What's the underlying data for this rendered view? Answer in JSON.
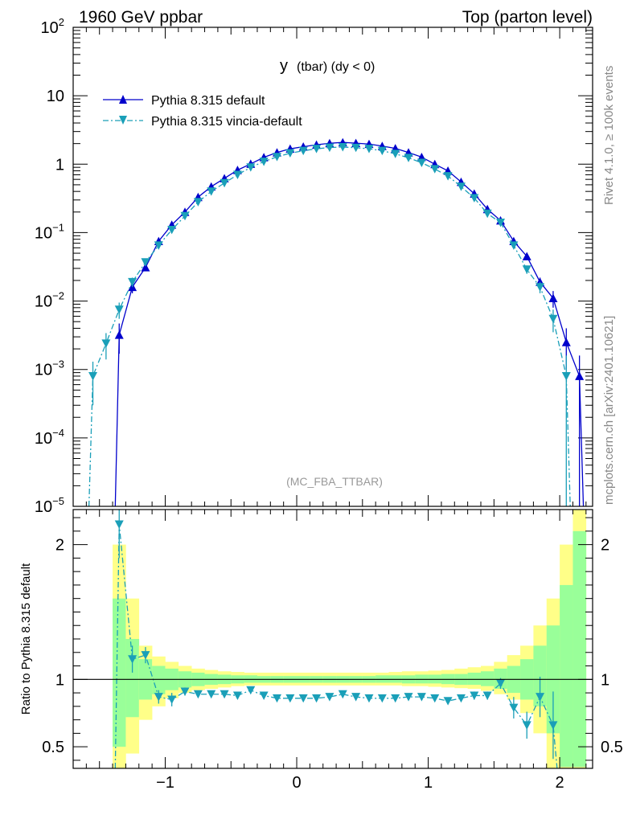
{
  "header": {
    "left": "1960 GeV ppbar",
    "right": "Top (parton level)"
  },
  "side_labels": {
    "rivet": "Rivet 4.1.0, ≥ 100k events",
    "mcplots": "mcplots.cern.ch [arXiv:2401.10621]"
  },
  "chart_data": {
    "type": "line",
    "title_main": "y",
    "title_sub": "(tbar) (dy < 0)",
    "analysis_label": "(MC_FBA_TTBAR)",
    "colors": {
      "default": "#0000cc",
      "vincia": "#1a9fb8",
      "band_green": "#99ff99",
      "band_yellow": "#ffff88"
    },
    "main": {
      "yscale": "log",
      "ylim": [
        1e-05,
        100
      ],
      "xlim": [
        -1.7,
        2.25
      ],
      "y_tick_labels": [
        "10^2",
        "10",
        "1",
        "10^-1",
        "10^-2",
        "10^-3",
        "10^-4",
        "10^-5"
      ],
      "series": [
        {
          "name": "Pythia 8.315 default",
          "marker": "triangle-up",
          "x": [
            -1.35,
            -1.25,
            -1.15,
            -1.05,
            -0.95,
            -0.85,
            -0.75,
            -0.65,
            -0.55,
            -0.45,
            -0.35,
            -0.25,
            -0.15,
            -0.05,
            0.05,
            0.15,
            0.25,
            0.35,
            0.45,
            0.55,
            0.65,
            0.75,
            0.85,
            0.95,
            1.05,
            1.15,
            1.25,
            1.35,
            1.45,
            1.55,
            1.65,
            1.75,
            1.85,
            1.95,
            2.05,
            2.15
          ],
          "y": [
            0.0032,
            0.016,
            0.031,
            0.075,
            0.13,
            0.2,
            0.33,
            0.47,
            0.62,
            0.82,
            1.01,
            1.26,
            1.48,
            1.68,
            1.8,
            1.92,
            2.02,
            2.08,
            2.03,
            1.97,
            1.84,
            1.7,
            1.48,
            1.27,
            1.0,
            0.8,
            0.55,
            0.37,
            0.22,
            0.15,
            0.075,
            0.045,
            0.019,
            0.011,
            0.0025,
            0.0008
          ],
          "yerr_low": [
            0.0015,
            0.003,
            0.003,
            0.005,
            0.006,
            0.008,
            0.01,
            0.01,
            0.01,
            0.01,
            0.01,
            0.01,
            0.01,
            0.01,
            0.01,
            0.01,
            0.01,
            0.01,
            0.01,
            0.01,
            0.01,
            0.01,
            0.01,
            0.01,
            0.01,
            0.01,
            0.01,
            0.01,
            0.01,
            0.008,
            0.006,
            0.004,
            0.003,
            0.003,
            0.0015,
            0.0008
          ],
          "yerr_high": [
            0.0015,
            0.003,
            0.003,
            0.005,
            0.006,
            0.008,
            0.01,
            0.01,
            0.01,
            0.01,
            0.01,
            0.01,
            0.01,
            0.01,
            0.01,
            0.01,
            0.01,
            0.01,
            0.01,
            0.01,
            0.01,
            0.01,
            0.01,
            0.01,
            0.01,
            0.01,
            0.01,
            0.01,
            0.01,
            0.008,
            0.006,
            0.004,
            0.003,
            0.003,
            0.0015,
            0.0008
          ]
        },
        {
          "name": "Pythia 8.315 vincia-default",
          "marker": "triangle-down",
          "x": [
            -1.55,
            -1.45,
            -1.35,
            -1.25,
            -1.15,
            -1.05,
            -0.95,
            -0.85,
            -0.75,
            -0.65,
            -0.55,
            -0.45,
            -0.35,
            -0.25,
            -0.15,
            -0.05,
            0.05,
            0.15,
            0.25,
            0.35,
            0.45,
            0.55,
            0.65,
            0.75,
            0.85,
            0.95,
            1.05,
            1.15,
            1.25,
            1.35,
            1.45,
            1.55,
            1.65,
            1.75,
            1.85,
            1.95,
            2.05
          ],
          "y": [
            0.0008,
            0.0024,
            0.0075,
            0.019,
            0.037,
            0.065,
            0.11,
            0.175,
            0.28,
            0.4,
            0.53,
            0.7,
            0.9,
            1.09,
            1.28,
            1.45,
            1.57,
            1.68,
            1.75,
            1.78,
            1.74,
            1.68,
            1.57,
            1.42,
            1.24,
            1.05,
            0.85,
            0.67,
            0.47,
            0.32,
            0.19,
            0.14,
            0.065,
            0.029,
            0.016,
            0.0055,
            0.0008
          ],
          "yerr_low": [
            0.0005,
            0.001,
            0.002,
            0.003,
            0.003,
            0.004,
            0.005,
            0.006,
            0.008,
            0.01,
            0.01,
            0.01,
            0.01,
            0.01,
            0.01,
            0.01,
            0.01,
            0.01,
            0.01,
            0.01,
            0.01,
            0.01,
            0.01,
            0.01,
            0.01,
            0.01,
            0.01,
            0.01,
            0.01,
            0.01,
            0.008,
            0.007,
            0.005,
            0.004,
            0.003,
            0.002,
            0.00079
          ],
          "yerr_high": [
            0.0005,
            0.001,
            0.002,
            0.003,
            0.003,
            0.004,
            0.005,
            0.006,
            0.008,
            0.01,
            0.01,
            0.01,
            0.01,
            0.01,
            0.01,
            0.01,
            0.01,
            0.01,
            0.01,
            0.01,
            0.01,
            0.01,
            0.01,
            0.01,
            0.01,
            0.01,
            0.01,
            0.01,
            0.01,
            0.01,
            0.008,
            0.007,
            0.005,
            0.004,
            0.003,
            0.002,
            0.0008
          ]
        }
      ]
    },
    "ratio": {
      "ylabel": "Ratio to Pythia 8.315 default",
      "ylim": [
        0.34,
        2.26
      ],
      "y_ticks": [
        0.5,
        1,
        2
      ],
      "y_tick_labels": [
        "0.5",
        "1",
        "2"
      ],
      "x_ticks": [
        -1,
        0,
        1,
        2
      ],
      "x_tick_labels": [
        "−1",
        "0",
        "1",
        "2"
      ],
      "reference_line": 1,
      "bands": {
        "bin_lows": [
          -1.4,
          -1.3,
          -1.2,
          -1.1,
          -1.0,
          -0.9,
          -0.8,
          -0.7,
          -0.6,
          -0.5,
          -0.4,
          -0.3,
          -0.2,
          -0.1,
          0.0,
          0.1,
          0.2,
          0.3,
          0.4,
          0.5,
          0.6,
          0.7,
          0.8,
          0.9,
          1.0,
          1.1,
          1.2,
          1.3,
          1.4,
          1.5,
          1.6,
          1.7,
          1.8,
          1.9,
          2.0,
          2.1
        ],
        "bin_width": 0.1,
        "green_low": [
          0.5,
          0.72,
          0.85,
          0.89,
          0.92,
          0.94,
          0.95,
          0.96,
          0.965,
          0.97,
          0.975,
          0.975,
          0.975,
          0.975,
          0.975,
          0.975,
          0.975,
          0.975,
          0.975,
          0.975,
          0.975,
          0.975,
          0.97,
          0.97,
          0.97,
          0.965,
          0.96,
          0.96,
          0.95,
          0.93,
          0.9,
          0.85,
          0.8,
          0.6,
          0.35,
          0.35
        ],
        "green_high": [
          1.6,
          1.3,
          1.15,
          1.1,
          1.08,
          1.06,
          1.05,
          1.04,
          1.035,
          1.03,
          1.03,
          1.025,
          1.025,
          1.025,
          1.025,
          1.025,
          1.025,
          1.025,
          1.025,
          1.025,
          1.03,
          1.03,
          1.03,
          1.035,
          1.035,
          1.04,
          1.04,
          1.05,
          1.06,
          1.08,
          1.1,
          1.15,
          1.25,
          1.4,
          1.7,
          2.1
        ],
        "yellow_low": [
          0.34,
          0.45,
          0.7,
          0.8,
          0.86,
          0.9,
          0.92,
          0.93,
          0.94,
          0.95,
          0.955,
          0.955,
          0.955,
          0.955,
          0.955,
          0.955,
          0.955,
          0.955,
          0.955,
          0.955,
          0.955,
          0.955,
          0.95,
          0.95,
          0.945,
          0.94,
          0.935,
          0.93,
          0.915,
          0.89,
          0.85,
          0.75,
          0.6,
          0.34,
          0.34,
          0.34
        ],
        "yellow_high": [
          2.0,
          1.6,
          1.25,
          1.17,
          1.13,
          1.1,
          1.08,
          1.07,
          1.06,
          1.055,
          1.05,
          1.05,
          1.05,
          1.05,
          1.05,
          1.05,
          1.05,
          1.05,
          1.05,
          1.05,
          1.05,
          1.055,
          1.06,
          1.06,
          1.065,
          1.07,
          1.08,
          1.09,
          1.1,
          1.13,
          1.18,
          1.25,
          1.4,
          1.6,
          2.0,
          2.26
        ]
      },
      "series": [
        {
          "name": "Pythia 8.315 vincia-default",
          "marker": "triangle-down",
          "x": [
            -1.35,
            -1.25,
            -1.15,
            -1.05,
            -0.95,
            -0.85,
            -0.75,
            -0.65,
            -0.55,
            -0.45,
            -0.35,
            -0.25,
            -0.15,
            -0.05,
            0.05,
            0.15,
            0.25,
            0.35,
            0.45,
            0.55,
            0.65,
            0.75,
            0.85,
            0.95,
            1.05,
            1.15,
            1.25,
            1.35,
            1.45,
            1.55,
            1.65,
            1.75,
            1.85,
            1.95
          ],
          "y": [
            2.15,
            1.15,
            1.18,
            0.87,
            0.85,
            0.91,
            0.89,
            0.89,
            0.89,
            0.88,
            0.92,
            0.88,
            0.86,
            0.86,
            0.86,
            0.86,
            0.87,
            0.89,
            0.87,
            0.86,
            0.86,
            0.86,
            0.87,
            0.87,
            0.86,
            0.84,
            0.86,
            0.88,
            0.88,
            0.97,
            0.79,
            0.66,
            0.87,
            0.66
          ],
          "yerr": [
            0.25,
            0.1,
            0.06,
            0.05,
            0.05,
            0.03,
            0.02,
            0.02,
            0.02,
            0.01,
            0.01,
            0.01,
            0.01,
            0.01,
            0.01,
            0.01,
            0.01,
            0.01,
            0.01,
            0.01,
            0.01,
            0.01,
            0.01,
            0.01,
            0.01,
            0.015,
            0.02,
            0.03,
            0.03,
            0.04,
            0.08,
            0.1,
            0.15,
            0.25
          ]
        }
      ]
    }
  }
}
